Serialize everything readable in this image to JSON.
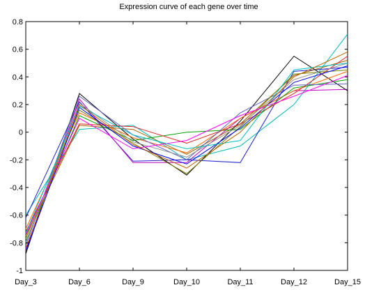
{
  "chart_data": {
    "type": "line",
    "title": "Expression curve of each gene over time",
    "xlabel": "",
    "ylabel": "",
    "categories": [
      "Day_3",
      "Day_6",
      "Day_9",
      "Day_10",
      "Day_11",
      "Day_12",
      "Day_15"
    ],
    "ylim": [
      -1,
      0.8
    ],
    "yticks": [
      -1,
      -0.8,
      -0.6,
      -0.4,
      -0.2,
      0,
      0.2,
      0.4,
      0.6,
      0.8
    ],
    "ytick_labels": [
      "-1",
      "-0.8",
      "-0.6",
      "-0.4",
      "-0.2",
      "0",
      "0.2",
      "0.4",
      "0.6",
      "0.8"
    ],
    "grid": false,
    "legend": "none",
    "series": [
      {
        "color": "#00b8b8",
        "values": [
          -0.6,
          0.02,
          0.05,
          -0.2,
          -0.1,
          0.2,
          0.71
        ]
      },
      {
        "color": "#2020d0",
        "values": [
          -0.62,
          0.22,
          -0.21,
          -0.2,
          -0.22,
          0.44,
          0.47
        ]
      },
      {
        "color": "#c000c0",
        "values": [
          -0.85,
          0.24,
          -0.22,
          -0.22,
          0.1,
          0.3,
          0.31
        ]
      },
      {
        "color": "#a06000",
        "values": [
          -0.75,
          0.05,
          0.02,
          -0.16,
          0.06,
          0.41,
          0.52
        ]
      },
      {
        "color": "#000000",
        "values": [
          -0.88,
          0.28,
          -0.05,
          -0.31,
          0.08,
          0.55,
          0.3
        ]
      },
      {
        "color": "#ff6600",
        "values": [
          -0.7,
          0.14,
          -0.04,
          -0.15,
          0.1,
          0.3,
          0.44
        ]
      },
      {
        "color": "#00a000",
        "values": [
          -0.79,
          0.12,
          -0.06,
          0.0,
          0.02,
          0.32,
          0.38
        ]
      },
      {
        "color": "#e02020",
        "values": [
          -0.72,
          0.06,
          0.04,
          -0.08,
          0.06,
          0.28,
          0.55
        ]
      },
      {
        "color": "#6060c0",
        "values": [
          -0.82,
          0.26,
          -0.02,
          -0.2,
          0.14,
          0.34,
          0.35
        ]
      },
      {
        "color": "#808000",
        "values": [
          -0.77,
          0.16,
          -0.08,
          -0.3,
          0.04,
          0.42,
          0.45
        ]
      },
      {
        "color": "#909090",
        "values": [
          -0.8,
          0.21,
          -0.07,
          -0.18,
          0.05,
          0.38,
          0.5
        ]
      },
      {
        "color": "#0000ff",
        "values": [
          -0.86,
          0.18,
          -0.1,
          -0.23,
          0.03,
          0.36,
          0.48
        ]
      },
      {
        "color": "#ff00ff",
        "values": [
          -0.74,
          0.1,
          -0.12,
          -0.06,
          0.12,
          0.26,
          0.41
        ]
      },
      {
        "color": "#00c0c0",
        "values": [
          -0.73,
          0.19,
          -0.02,
          -0.12,
          -0.06,
          0.45,
          0.5
        ]
      },
      {
        "color": "#c06000",
        "values": [
          -0.84,
          0.2,
          -0.09,
          -0.26,
          0.0,
          0.4,
          0.58
        ]
      }
    ]
  }
}
